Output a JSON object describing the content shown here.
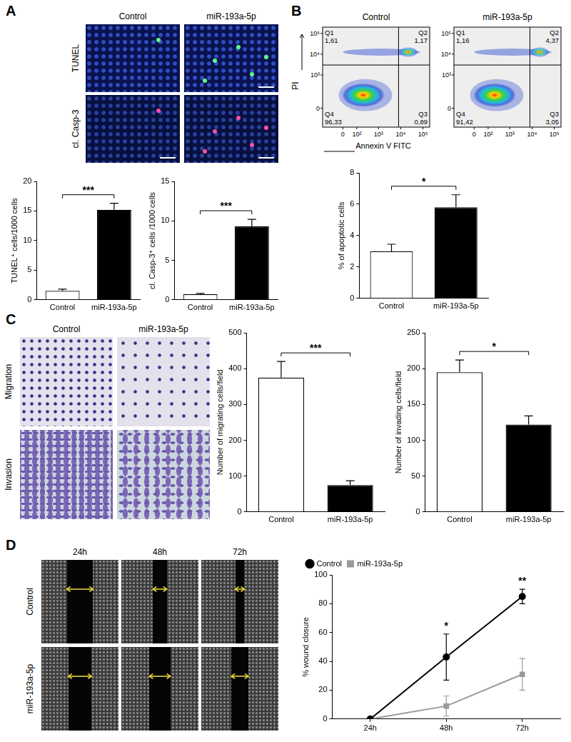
{
  "figure": {
    "panel_labels": [
      "A",
      "B",
      "C",
      "D"
    ],
    "micrographs_A": {
      "columns": [
        "Control",
        "miR-193a-5p"
      ],
      "rows": [
        "TUNEL",
        "cl. Casp-3"
      ]
    },
    "flow_plots": {
      "x_label": "Annexin V FITC",
      "y_label": "PI",
      "xlim": [
        -200,
        200000
      ],
      "ylim": [
        -200,
        200000
      ],
      "xticks": [
        0,
        {
          "value": 100,
          "label": "10²"
        },
        {
          "value": 1000,
          "label": "10³"
        },
        {
          "value": 10000,
          "label": "10⁴"
        },
        {
          "value": 100000,
          "label": "10⁵"
        }
      ],
      "yticks": [
        0,
        {
          "value": 1000,
          "label": "10³"
        },
        {
          "value": 10000,
          "label": "10⁴"
        },
        {
          "value": 100000,
          "label": "10⁵"
        }
      ],
      "x_gate": 8000,
      "y_gate": 3000,
      "plots": [
        {
          "title": "Control",
          "quadrants": [
            {
              "name": "Q1",
              "value": 1.61,
              "label": "1,61"
            },
            {
              "name": "Q2",
              "value": 1.17,
              "label": "1,17"
            },
            {
              "name": "Q3",
              "value": 0.89,
              "label": "0,89"
            },
            {
              "name": "Q4",
              "value": 96.33,
              "label": "96,33"
            }
          ]
        },
        {
          "title": "miR-193a-5p",
          "quadrants": [
            {
              "name": "Q1",
              "value": 1.16,
              "label": "1,16"
            },
            {
              "name": "Q2",
              "value": 4.37,
              "label": "4,37"
            },
            {
              "name": "Q3",
              "value": 3.05,
              "label": "3,05"
            },
            {
              "name": "Q4",
              "value": 91.42,
              "label": "91,42"
            }
          ]
        }
      ]
    },
    "micrographs_C": {
      "columns": [
        "Control",
        "miR-193a-5p"
      ],
      "rows": [
        "Migration",
        "Invasion"
      ]
    },
    "micrographs_D": {
      "columns": [
        "24h",
        "48h",
        "72h"
      ],
      "rows": [
        "Control",
        "miR-193a-5p"
      ]
    }
  },
  "chart_data": [
    {
      "type": "bar",
      "categories": [
        "Control",
        "miR-193a-5p"
      ],
      "values": [
        1.5,
        15.2
      ],
      "errors": [
        0.3,
        1.1
      ],
      "colors": [
        "#ffffff",
        "#000000"
      ],
      "y_label": "TUNEL⁺ cells/1000 cells",
      "ylim": [
        0,
        20
      ],
      "yticks": [
        0,
        5,
        10,
        15,
        20
      ],
      "grid": false,
      "annotations": [
        {
          "text": "***",
          "between": [
            "Control",
            "miR-193a-5p"
          ]
        }
      ]
    },
    {
      "type": "bar",
      "categories": [
        "Control",
        "miR-193a-5p"
      ],
      "values": [
        0.7,
        9.3
      ],
      "errors": [
        0.1,
        0.9
      ],
      "colors": [
        "#ffffff",
        "#000000"
      ],
      "y_label": "cl. Casp-3⁺ cells /1000 cells",
      "ylim": [
        0,
        15
      ],
      "yticks": [
        0,
        5,
        10,
        15
      ],
      "grid": false,
      "annotations": [
        {
          "text": "***",
          "between": [
            "Control",
            "miR-193a-5p"
          ]
        }
      ]
    },
    {
      "type": "bar",
      "categories": [
        "Control",
        "miR-193a-5p"
      ],
      "values": [
        3.0,
        5.8
      ],
      "errors": [
        0.45,
        0.8
      ],
      "colors": [
        "#ffffff",
        "#000000"
      ],
      "y_label": "% of apoptotic cells",
      "ylim": [
        0,
        8
      ],
      "yticks": [
        0,
        2,
        4,
        6,
        8
      ],
      "grid": false,
      "annotations": [
        {
          "text": "*",
          "between": [
            "Control",
            "miR-193a-5p"
          ]
        }
      ]
    },
    {
      "type": "bar",
      "categories": [
        "Control",
        "miR-193a-5p"
      ],
      "values": [
        375,
        75
      ],
      "errors": [
        45,
        12
      ],
      "colors": [
        "#ffffff",
        "#000000"
      ],
      "y_label": "Number of migrating cells/field",
      "ylim": [
        0,
        500
      ],
      "yticks": [
        0,
        100,
        200,
        300,
        400,
        500
      ],
      "grid": false,
      "annotations": [
        {
          "text": "***",
          "between": [
            "Control",
            "miR-193a-5p"
          ]
        }
      ]
    },
    {
      "type": "bar",
      "categories": [
        "Control",
        "miR-193a-5p"
      ],
      "values": [
        195,
        122
      ],
      "errors": [
        17,
        12
      ],
      "colors": [
        "#ffffff",
        "#000000"
      ],
      "y_label": "Number of invading cells/field",
      "ylim": [
        0,
        250
      ],
      "yticks": [
        0,
        50,
        100,
        150,
        200,
        250
      ],
      "grid": false,
      "annotations": [
        {
          "text": "*",
          "between": [
            "Control",
            "miR-193a-5p"
          ]
        }
      ]
    },
    {
      "type": "line",
      "categories": [
        "24h",
        "48h",
        "72h"
      ],
      "series": [
        {
          "name": "Control",
          "color": "#000000",
          "marker": "circle",
          "values": [
            0,
            43,
            85
          ],
          "errors": [
            0,
            16,
            5
          ]
        },
        {
          "name": "miR-193a-5p",
          "color": "#9a9a9a",
          "marker": "square",
          "values": [
            0,
            9,
            31
          ],
          "errors": [
            0,
            7,
            11
          ]
        }
      ],
      "y_label": "% wound closure",
      "ylim": [
        0,
        100
      ],
      "yticks": [
        0,
        20,
        40,
        60,
        80,
        100
      ],
      "grid": false,
      "legend": "top-left",
      "annotations": [
        {
          "text": "*",
          "x": "48h"
        },
        {
          "text": "**",
          "x": "72h"
        }
      ]
    }
  ]
}
